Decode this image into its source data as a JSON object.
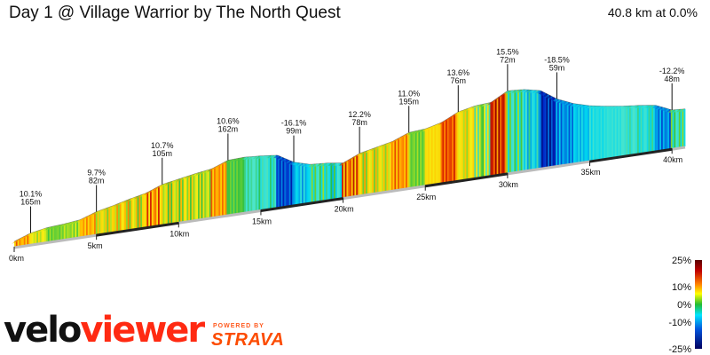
{
  "header": {
    "title": "Day 1 @ Village Warrior by The North Quest",
    "summary": "40.8 km at 0.0%"
  },
  "branding": {
    "logo_part1": "velo",
    "logo_part2": "viewer",
    "powered_by": "POWERED BY",
    "strava": "STRAVA"
  },
  "colors": {
    "accent": "#ff2a12",
    "strava": "#fc4c02"
  },
  "chart_data": {
    "type": "area",
    "title": "Day 1 @ Village Warrior by The North Quest",
    "subtitle": "40.8 km at 0.0%",
    "x_unit": "km",
    "x_ticks": [
      "0km",
      "5km",
      "10km",
      "15km",
      "20km",
      "25km",
      "30km",
      "35km",
      "40km"
    ],
    "x_range": [
      0,
      40.8
    ],
    "profile": [
      {
        "km": 0.0,
        "grade": -3
      },
      {
        "km": 1.0,
        "grade": 10.1
      },
      {
        "km": 2.0,
        "grade": 5
      },
      {
        "km": 3.0,
        "grade": 2
      },
      {
        "km": 4.0,
        "grade": 3
      },
      {
        "km": 5.0,
        "grade": 9.7
      },
      {
        "km": 6.0,
        "grade": 6
      },
      {
        "km": 7.0,
        "grade": 7
      },
      {
        "km": 8.0,
        "grade": 6
      },
      {
        "km": 9.0,
        "grade": 10.7
      },
      {
        "km": 10.0,
        "grade": 5
      },
      {
        "km": 11.0,
        "grade": 5
      },
      {
        "km": 12.0,
        "grade": 4
      },
      {
        "km": 13.0,
        "grade": 10.6
      },
      {
        "km": 14.0,
        "grade": 1
      },
      {
        "km": 15.0,
        "grade": -2
      },
      {
        "km": 16.0,
        "grade": -3
      },
      {
        "km": 17.0,
        "grade": -16.1
      },
      {
        "km": 18.0,
        "grade": -8
      },
      {
        "km": 19.0,
        "grade": -2
      },
      {
        "km": 20.0,
        "grade": -4
      },
      {
        "km": 21.0,
        "grade": 12.2
      },
      {
        "km": 22.0,
        "grade": 6
      },
      {
        "km": 23.0,
        "grade": 6
      },
      {
        "km": 24.0,
        "grade": 11.0
      },
      {
        "km": 25.0,
        "grade": 2
      },
      {
        "km": 26.0,
        "grade": 7
      },
      {
        "km": 27.0,
        "grade": 13.6
      },
      {
        "km": 28.0,
        "grade": 6
      },
      {
        "km": 29.0,
        "grade": 2
      },
      {
        "km": 30.0,
        "grade": 15.5
      },
      {
        "km": 31.0,
        "grade": -2
      },
      {
        "km": 32.0,
        "grade": -6
      },
      {
        "km": 33.0,
        "grade": -18.5
      },
      {
        "km": 34.0,
        "grade": -12
      },
      {
        "km": 35.0,
        "grade": -8
      },
      {
        "km": 36.0,
        "grade": -5
      },
      {
        "km": 37.0,
        "grade": -4
      },
      {
        "km": 38.0,
        "grade": -3
      },
      {
        "km": 39.0,
        "grade": -4
      },
      {
        "km": 40.0,
        "grade": -12.2
      },
      {
        "km": 40.8,
        "grade": -2
      }
    ],
    "annotations": [
      {
        "km": 1.0,
        "grade_label": "10.1%",
        "length_label": "165m"
      },
      {
        "km": 5.0,
        "grade_label": "9.7%",
        "length_label": "82m"
      },
      {
        "km": 9.0,
        "grade_label": "10.7%",
        "length_label": "105m"
      },
      {
        "km": 13.0,
        "grade_label": "10.6%",
        "length_label": "162m"
      },
      {
        "km": 17.0,
        "grade_label": "-16.1%",
        "length_label": "99m"
      },
      {
        "km": 21.0,
        "grade_label": "12.2%",
        "length_label": "78m"
      },
      {
        "km": 24.0,
        "grade_label": "11.0%",
        "length_label": "195m"
      },
      {
        "km": 27.0,
        "grade_label": "13.6%",
        "length_label": "76m"
      },
      {
        "km": 30.0,
        "grade_label": "15.5%",
        "length_label": "72m"
      },
      {
        "km": 33.0,
        "grade_label": "-18.5%",
        "length_label": "59m"
      },
      {
        "km": 40.0,
        "grade_label": "-12.2%",
        "length_label": "48m"
      }
    ],
    "legend": {
      "labels": [
        "25%",
        "10%",
        "0%",
        "-10%",
        "-25%"
      ],
      "range": [
        -25,
        25
      ],
      "placement": "bottom-right"
    }
  }
}
